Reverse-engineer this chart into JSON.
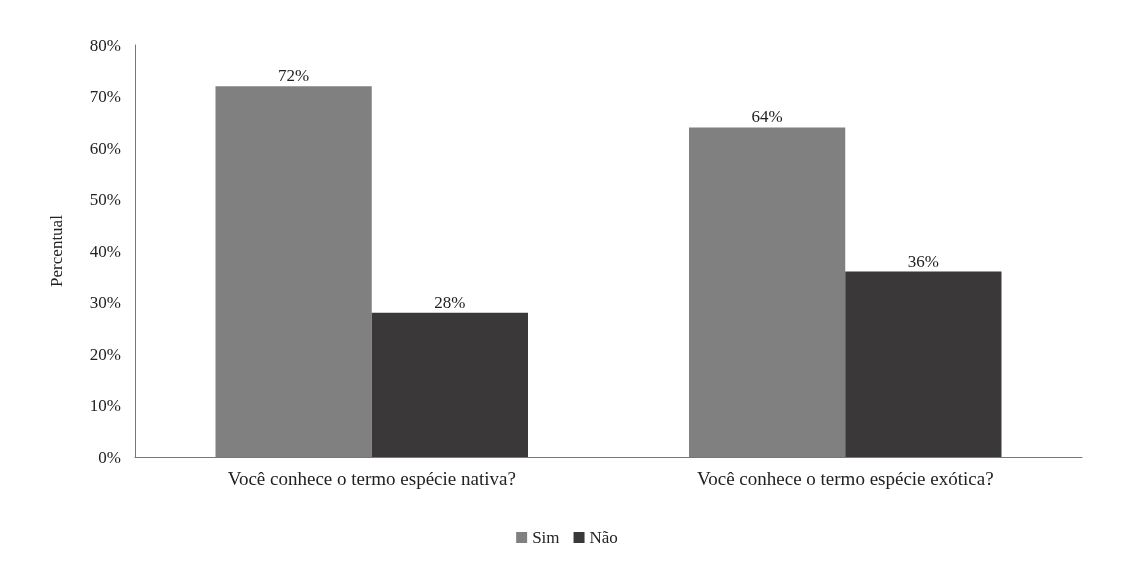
{
  "chart_data": {
    "type": "bar",
    "ylabel": "Percentual",
    "categories": [
      "Você conhece o termo espécie nativa?",
      "Você conhece o termo espécie exótica?"
    ],
    "series": [
      {
        "name": "Sim",
        "color": "#808080",
        "values": [
          72,
          64
        ],
        "value_labels": [
          "72%",
          "64%"
        ]
      },
      {
        "name": "Não",
        "color": "#3a3839",
        "values": [
          28,
          36
        ],
        "value_labels": [
          "28%",
          "36%"
        ]
      }
    ],
    "ylim": [
      0,
      80
    ],
    "yticks": [
      {
        "value": 0,
        "label": "0%"
      },
      {
        "value": 10,
        "label": "10%"
      },
      {
        "value": 20,
        "label": "20%"
      },
      {
        "value": 30,
        "label": "30%"
      },
      {
        "value": 40,
        "label": "40%"
      },
      {
        "value": 50,
        "label": "50%"
      },
      {
        "value": 60,
        "label": "60%"
      },
      {
        "value": 70,
        "label": "70%"
      },
      {
        "value": 80,
        "label": "80%"
      }
    ],
    "grid": false,
    "legend": "bottom"
  }
}
